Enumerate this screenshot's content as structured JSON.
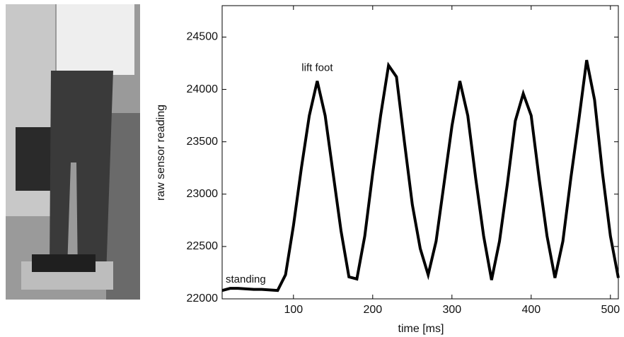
{
  "chart_data": {
    "type": "line",
    "x_label": "time [ms]",
    "y_label": "raw sensor reading",
    "annotations": [
      "lift foot",
      "standing"
    ],
    "x": [
      10,
      20,
      30,
      40,
      50,
      60,
      70,
      80,
      90,
      100,
      110,
      120,
      130,
      140,
      150,
      160,
      170,
      180,
      190,
      200,
      210,
      220,
      230,
      240,
      250,
      260,
      270,
      280,
      290,
      300,
      310,
      320,
      330,
      340,
      350,
      360,
      370,
      380,
      390,
      400,
      410,
      420,
      430,
      440,
      450,
      460,
      470,
      480,
      490,
      500,
      510
    ],
    "series": [
      {
        "name": "raw sensor reading",
        "color": "#000000",
        "values": [
          22080,
          22100,
          22100,
          22095,
          22090,
          22090,
          22085,
          22080,
          22230,
          22700,
          23250,
          23750,
          24080,
          23750,
          23200,
          22650,
          22210,
          22190,
          22600,
          23200,
          23750,
          24230,
          24120,
          23500,
          22900,
          22480,
          22230,
          22550,
          23100,
          23650,
          24080,
          23750,
          23150,
          22600,
          22180,
          22550,
          23100,
          23700,
          23960,
          23750,
          23150,
          22600,
          22200,
          22550,
          23150,
          23700,
          24280,
          23900,
          23200,
          22600,
          22200
        ]
      }
    ],
    "xlim": [
      10,
      510
    ],
    "xticks": [
      100,
      200,
      300,
      400,
      500
    ],
    "ylim": [
      22000,
      24800
    ],
    "yticks": [
      22000,
      22500,
      23000,
      23500,
      24000,
      24500
    ]
  }
}
